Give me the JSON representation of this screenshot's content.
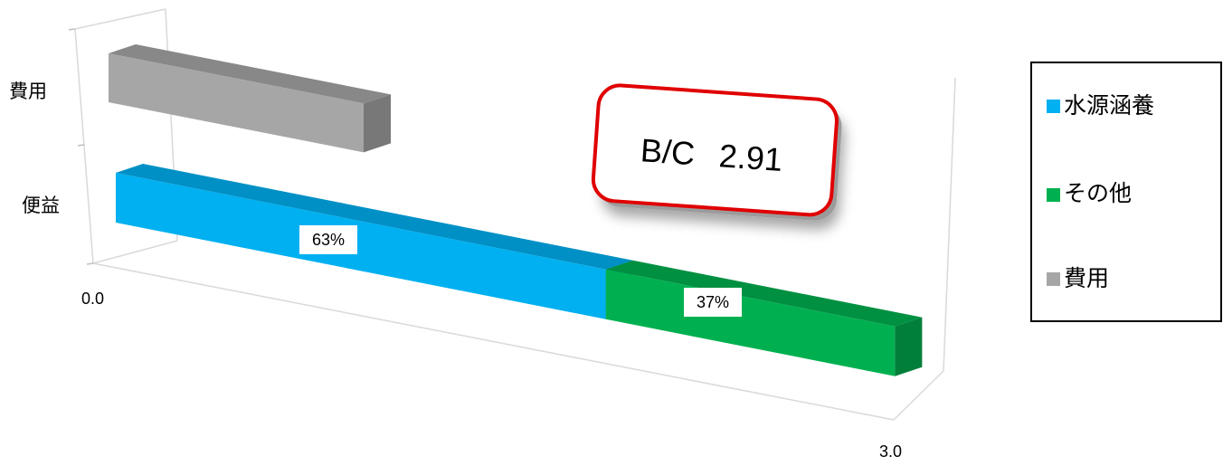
{
  "chart_data": {
    "type": "bar",
    "orientation": "horizontal",
    "stacked": true,
    "three_d": true,
    "categories": [
      "費用",
      "便益"
    ],
    "series": [
      {
        "name": "水源涵養",
        "values": [
          0,
          1.83
        ],
        "color": "#00B0F0",
        "label": "63%"
      },
      {
        "name": "その他",
        "values": [
          0,
          1.08
        ],
        "color": "#00B050",
        "label": "37%"
      },
      {
        "name": "費用",
        "values": [
          1.0,
          0
        ],
        "color": "#A6A6A6"
      }
    ],
    "xlim": [
      0.0,
      3.0
    ],
    "x_ticks": [
      "0.0",
      "3.0"
    ],
    "annotation": {
      "label": "B/C",
      "value": "2.91"
    },
    "legend_position": "right",
    "grid": false
  }
}
